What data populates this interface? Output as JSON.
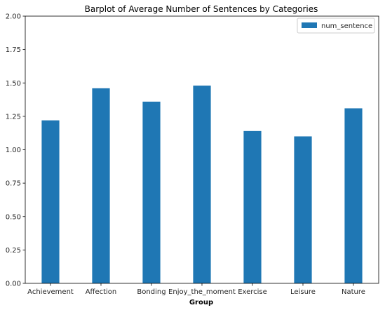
{
  "chart_data": {
    "type": "bar",
    "title": "Barplot of Average Number of Sentences by Categories",
    "xlabel": "Group",
    "ylabel": "",
    "categories": [
      "Achievement",
      "Affection",
      "Bonding",
      "Enjoy_the_moment",
      "Exercise",
      "Leisure",
      "Nature"
    ],
    "series": [
      {
        "name": "num_sentence",
        "values": [
          1.22,
          1.46,
          1.36,
          1.48,
          1.14,
          1.1,
          1.31
        ],
        "color": "#1f77b4"
      }
    ],
    "ylim": [
      0,
      2.0
    ],
    "yticks": [
      "0.00",
      "0.25",
      "0.50",
      "0.75",
      "1.00",
      "1.25",
      "1.50",
      "1.75",
      "2.00"
    ],
    "grid": false,
    "legend_position": "top-right"
  }
}
